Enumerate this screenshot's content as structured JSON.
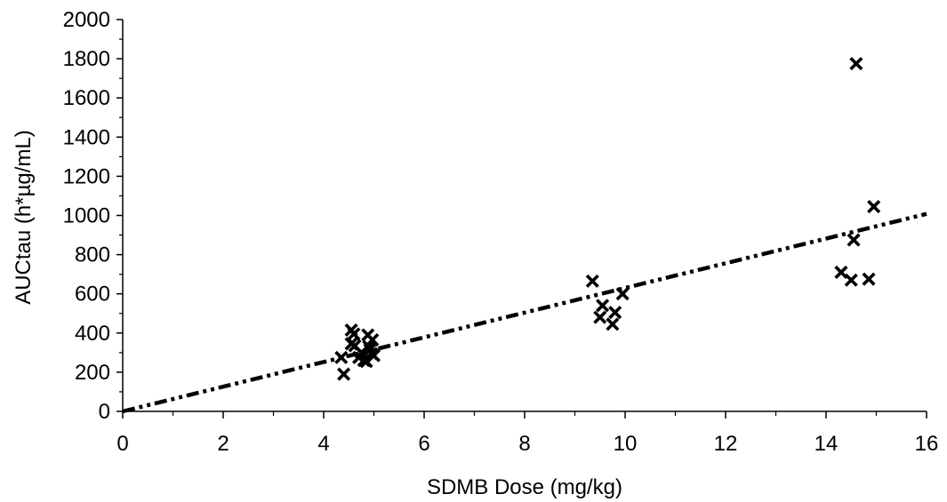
{
  "chart_data": {
    "type": "scatter",
    "title": "",
    "xlabel": "SDMB Dose (mg/kg)",
    "ylabel": "AUCtau (h*µg/mL)",
    "xlim": [
      0,
      16
    ],
    "ylim": [
      0,
      2000
    ],
    "x_ticks": [
      0,
      2,
      4,
      6,
      8,
      10,
      12,
      14,
      16
    ],
    "y_ticks": [
      0,
      200,
      400,
      600,
      800,
      1000,
      1200,
      1400,
      1600,
      1800,
      2000
    ],
    "grid": false,
    "marker": "x",
    "marker_color": "#000000",
    "series": [
      {
        "x": [
          4.35,
          4.4,
          4.55,
          4.6,
          4.55,
          4.62,
          4.7,
          4.75,
          4.8,
          4.85,
          4.88,
          4.9,
          4.92,
          4.95,
          4.97,
          5.0,
          9.35,
          9.5,
          9.55,
          9.75,
          9.8,
          9.95,
          14.3,
          14.5,
          14.55,
          14.6,
          14.85,
          14.95
        ],
        "y": [
          275,
          190,
          415,
          395,
          345,
          335,
          275,
          300,
          260,
          255,
          390,
          330,
          315,
          295,
          365,
          285,
          665,
          480,
          540,
          445,
          505,
          600,
          710,
          670,
          875,
          1775,
          675,
          1045
        ]
      }
    ],
    "trendline": {
      "style": "dash-dot-dot",
      "color": "#000000",
      "x": [
        0,
        16
      ],
      "y": [
        0,
        1008
      ]
    }
  }
}
